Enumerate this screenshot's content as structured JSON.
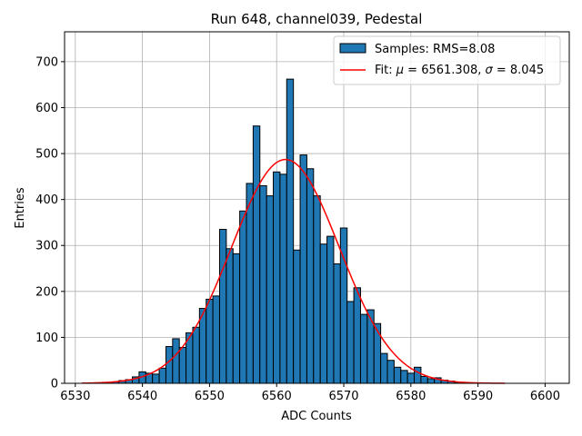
{
  "chart_data": {
    "type": "bar",
    "title": "Run 648, channel039, Pedestal",
    "xlabel": "ADC Counts",
    "ylabel": "Entries",
    "xlim": [
      6528.4,
      6603.6
    ],
    "ylim": [
      0,
      765
    ],
    "xticks": [
      6530,
      6540,
      6550,
      6560,
      6570,
      6580,
      6590,
      6600
    ],
    "yticks": [
      0,
      100,
      200,
      300,
      400,
      500,
      600,
      700
    ],
    "grid": true,
    "legend_position": "top-right",
    "bin_width": 1,
    "histogram": {
      "name": "Samples: RMS=8.08",
      "color": "#1f77b4",
      "bins": [
        [
          6535,
          2
        ],
        [
          6536,
          3
        ],
        [
          6537,
          6
        ],
        [
          6538,
          8
        ],
        [
          6539,
          14
        ],
        [
          6540,
          25
        ],
        [
          6541,
          22
        ],
        [
          6542,
          20
        ],
        [
          6543,
          33
        ],
        [
          6544,
          80
        ],
        [
          6545,
          97
        ],
        [
          6546,
          78
        ],
        [
          6547,
          110
        ],
        [
          6548,
          122
        ],
        [
          6549,
          163
        ],
        [
          6550,
          183
        ],
        [
          6551,
          190
        ],
        [
          6552,
          335
        ],
        [
          6553,
          293
        ],
        [
          6554,
          282
        ],
        [
          6555,
          375
        ],
        [
          6556,
          435
        ],
        [
          6557,
          560
        ],
        [
          6558,
          430
        ],
        [
          6559,
          408
        ],
        [
          6560,
          460
        ],
        [
          6561,
          455
        ],
        [
          6562,
          662
        ],
        [
          6563,
          290
        ],
        [
          6564,
          497
        ],
        [
          6565,
          467
        ],
        [
          6566,
          408
        ],
        [
          6567,
          303
        ],
        [
          6568,
          320
        ],
        [
          6569,
          260
        ],
        [
          6570,
          338
        ],
        [
          6571,
          178
        ],
        [
          6572,
          208
        ],
        [
          6573,
          150
        ],
        [
          6574,
          160
        ],
        [
          6575,
          130
        ],
        [
          6576,
          65
        ],
        [
          6577,
          50
        ],
        [
          6578,
          35
        ],
        [
          6579,
          28
        ],
        [
          6580,
          22
        ],
        [
          6581,
          35
        ],
        [
          6582,
          15
        ],
        [
          6583,
          10
        ],
        [
          6584,
          12
        ],
        [
          6585,
          7
        ],
        [
          6586,
          5
        ],
        [
          6587,
          2
        ]
      ]
    },
    "fit": {
      "name": "Fit: μ = 6561.308, σ = 8.045",
      "name_parts": [
        "Fit: ",
        "μ",
        " = 6561.308, ",
        "σ",
        " = 8.045"
      ],
      "type": "gaussian",
      "mu": 6561.308,
      "sigma": 8.045,
      "amplitude": 487,
      "x_range": [
        6531,
        6594
      ],
      "color": "#ff0000"
    }
  }
}
